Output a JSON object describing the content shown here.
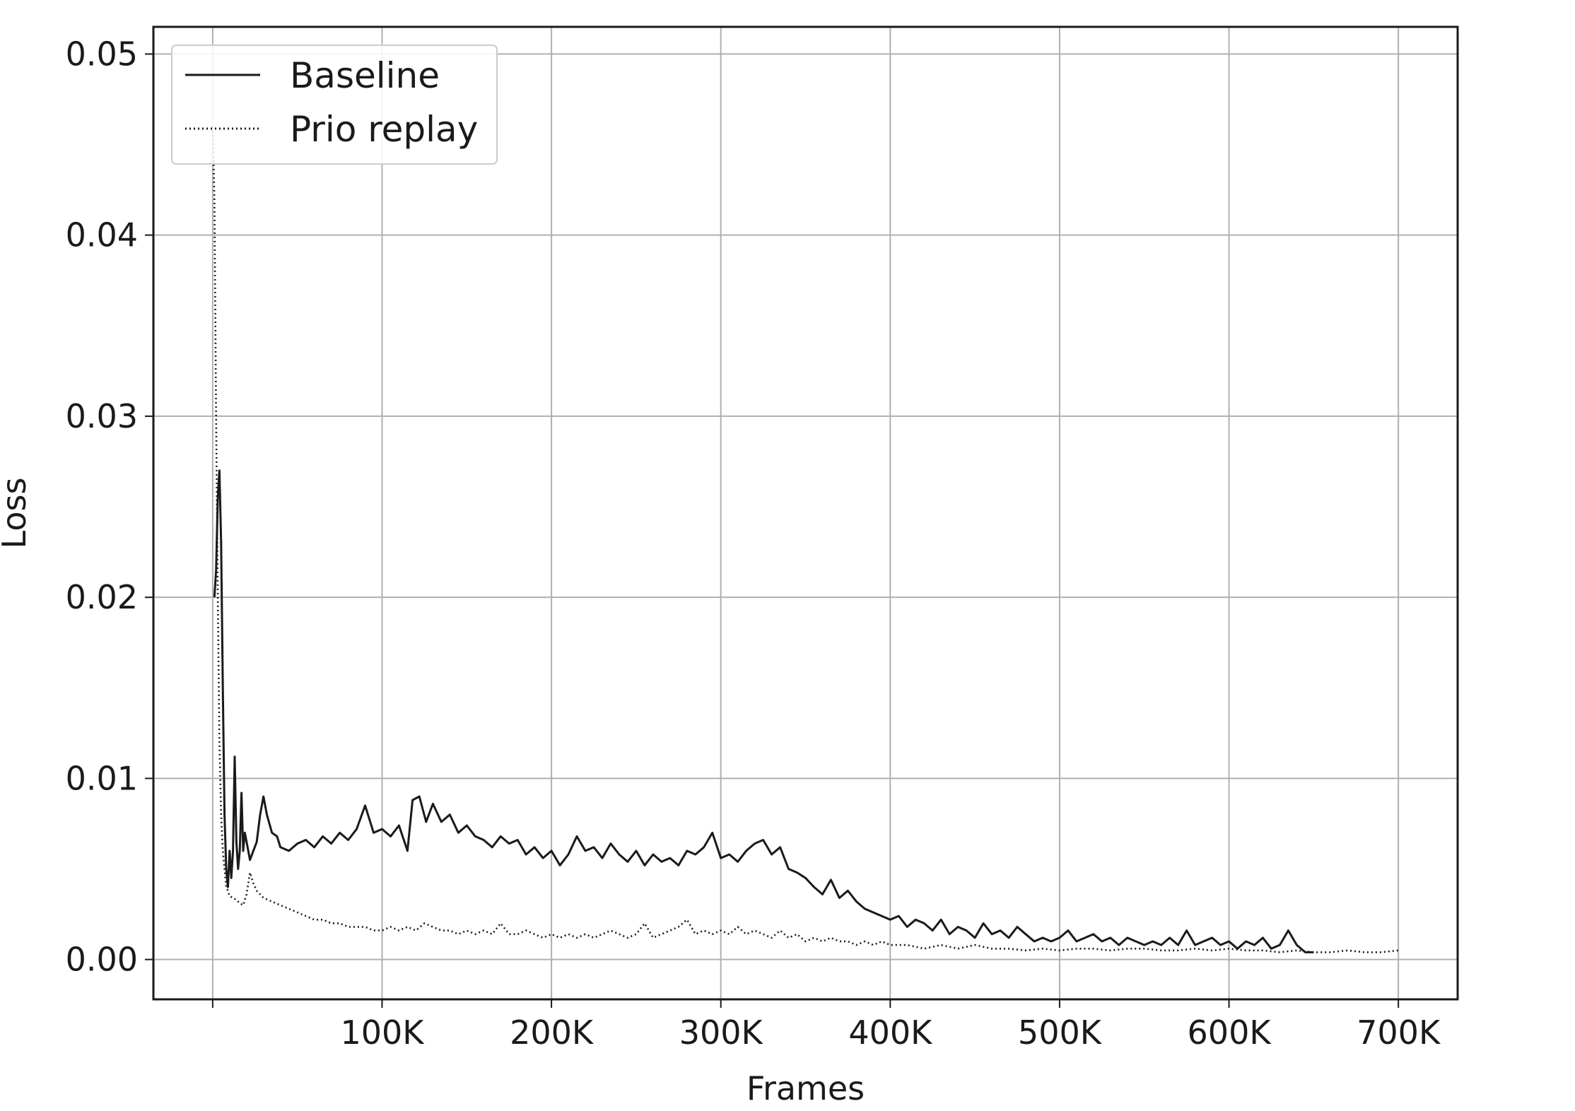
{
  "chart_data": {
    "type": "line",
    "title": "",
    "xlabel": "Frames",
    "ylabel": "Loss",
    "xlim": [
      -35000,
      735000
    ],
    "ylim": [
      -0.0022,
      0.0515
    ],
    "x_ticks": [
      {
        "value": 0,
        "label": ""
      },
      {
        "value": 100000,
        "label": "100K"
      },
      {
        "value": 200000,
        "label": "200K"
      },
      {
        "value": 300000,
        "label": "300K"
      },
      {
        "value": 400000,
        "label": "400K"
      },
      {
        "value": 500000,
        "label": "500K"
      },
      {
        "value": 600000,
        "label": "600K"
      },
      {
        "value": 700000,
        "label": "700K"
      }
    ],
    "y_ticks": [
      {
        "value": 0.0,
        "label": "0.00"
      },
      {
        "value": 0.01,
        "label": "0.01"
      },
      {
        "value": 0.02,
        "label": "0.02"
      },
      {
        "value": 0.03,
        "label": "0.03"
      },
      {
        "value": 0.04,
        "label": "0.04"
      },
      {
        "value": 0.05,
        "label": "0.05"
      }
    ],
    "grid": true,
    "legend": {
      "position": "upper-left"
    },
    "series": [
      {
        "name": "Baseline",
        "style": "solid",
        "color": "#1a1a1a",
        "points": [
          [
            1000,
            0.02
          ],
          [
            2000,
            0.0215
          ],
          [
            3000,
            0.0255
          ],
          [
            4000,
            0.027
          ],
          [
            5000,
            0.023
          ],
          [
            6000,
            0.015
          ],
          [
            7000,
            0.008
          ],
          [
            8000,
            0.005
          ],
          [
            9000,
            0.004
          ],
          [
            10000,
            0.006
          ],
          [
            11000,
            0.0045
          ],
          [
            12000,
            0.006
          ],
          [
            13000,
            0.0112
          ],
          [
            14000,
            0.0065
          ],
          [
            15000,
            0.005
          ],
          [
            16000,
            0.006
          ],
          [
            17000,
            0.0092
          ],
          [
            18000,
            0.006
          ],
          [
            19000,
            0.007
          ],
          [
            20000,
            0.0065
          ],
          [
            22000,
            0.0055
          ],
          [
            24000,
            0.006
          ],
          [
            26000,
            0.0065
          ],
          [
            28000,
            0.008
          ],
          [
            30000,
            0.009
          ],
          [
            32000,
            0.008
          ],
          [
            35000,
            0.007
          ],
          [
            38000,
            0.0068
          ],
          [
            40000,
            0.0062
          ],
          [
            45000,
            0.006
          ],
          [
            50000,
            0.0064
          ],
          [
            55000,
            0.0066
          ],
          [
            60000,
            0.0062
          ],
          [
            65000,
            0.0068
          ],
          [
            70000,
            0.0064
          ],
          [
            75000,
            0.007
          ],
          [
            80000,
            0.0066
          ],
          [
            85000,
            0.0072
          ],
          [
            90000,
            0.0085
          ],
          [
            95000,
            0.007
          ],
          [
            100000,
            0.0072
          ],
          [
            105000,
            0.0068
          ],
          [
            110000,
            0.0074
          ],
          [
            115000,
            0.006
          ],
          [
            118000,
            0.0088
          ],
          [
            122000,
            0.009
          ],
          [
            126000,
            0.0076
          ],
          [
            130000,
            0.0086
          ],
          [
            135000,
            0.0076
          ],
          [
            140000,
            0.008
          ],
          [
            145000,
            0.007
          ],
          [
            150000,
            0.0074
          ],
          [
            155000,
            0.0068
          ],
          [
            160000,
            0.0066
          ],
          [
            165000,
            0.0062
          ],
          [
            170000,
            0.0068
          ],
          [
            175000,
            0.0064
          ],
          [
            180000,
            0.0066
          ],
          [
            185000,
            0.0058
          ],
          [
            190000,
            0.0062
          ],
          [
            195000,
            0.0056
          ],
          [
            200000,
            0.006
          ],
          [
            205000,
            0.0052
          ],
          [
            210000,
            0.0058
          ],
          [
            215000,
            0.0068
          ],
          [
            220000,
            0.006
          ],
          [
            225000,
            0.0062
          ],
          [
            230000,
            0.0056
          ],
          [
            235000,
            0.0064
          ],
          [
            240000,
            0.0058
          ],
          [
            245000,
            0.0054
          ],
          [
            250000,
            0.006
          ],
          [
            255000,
            0.0052
          ],
          [
            260000,
            0.0058
          ],
          [
            265000,
            0.0054
          ],
          [
            270000,
            0.0056
          ],
          [
            275000,
            0.0052
          ],
          [
            280000,
            0.006
          ],
          [
            285000,
            0.0058
          ],
          [
            290000,
            0.0062
          ],
          [
            295000,
            0.007
          ],
          [
            300000,
            0.0056
          ],
          [
            305000,
            0.0058
          ],
          [
            310000,
            0.0054
          ],
          [
            315000,
            0.006
          ],
          [
            320000,
            0.0064
          ],
          [
            325000,
            0.0066
          ],
          [
            330000,
            0.0058
          ],
          [
            335000,
            0.0062
          ],
          [
            340000,
            0.005
          ],
          [
            345000,
            0.0048
          ],
          [
            350000,
            0.0045
          ],
          [
            355000,
            0.004
          ],
          [
            360000,
            0.0036
          ],
          [
            365000,
            0.0044
          ],
          [
            370000,
            0.0034
          ],
          [
            375000,
            0.0038
          ],
          [
            380000,
            0.0032
          ],
          [
            385000,
            0.0028
          ],
          [
            390000,
            0.0026
          ],
          [
            395000,
            0.0024
          ],
          [
            400000,
            0.0022
          ],
          [
            405000,
            0.0024
          ],
          [
            410000,
            0.0018
          ],
          [
            415000,
            0.0022
          ],
          [
            420000,
            0.002
          ],
          [
            425000,
            0.0016
          ],
          [
            430000,
            0.0022
          ],
          [
            435000,
            0.0014
          ],
          [
            440000,
            0.0018
          ],
          [
            445000,
            0.0016
          ],
          [
            450000,
            0.0012
          ],
          [
            455000,
            0.002
          ],
          [
            460000,
            0.0014
          ],
          [
            465000,
            0.0016
          ],
          [
            470000,
            0.0012
          ],
          [
            475000,
            0.0018
          ],
          [
            480000,
            0.0014
          ],
          [
            485000,
            0.001
          ],
          [
            490000,
            0.0012
          ],
          [
            495000,
            0.001
          ],
          [
            500000,
            0.0012
          ],
          [
            505000,
            0.0016
          ],
          [
            510000,
            0.001
          ],
          [
            515000,
            0.0012
          ],
          [
            520000,
            0.0014
          ],
          [
            525000,
            0.001
          ],
          [
            530000,
            0.0012
          ],
          [
            535000,
            0.0008
          ],
          [
            540000,
            0.0012
          ],
          [
            545000,
            0.001
          ],
          [
            550000,
            0.0008
          ],
          [
            555000,
            0.001
          ],
          [
            560000,
            0.0008
          ],
          [
            565000,
            0.0012
          ],
          [
            570000,
            0.0008
          ],
          [
            575000,
            0.0016
          ],
          [
            580000,
            0.0008
          ],
          [
            585000,
            0.001
          ],
          [
            590000,
            0.0012
          ],
          [
            595000,
            0.0008
          ],
          [
            600000,
            0.001
          ],
          [
            605000,
            0.0006
          ],
          [
            610000,
            0.001
          ],
          [
            615000,
            0.0008
          ],
          [
            620000,
            0.0012
          ],
          [
            625000,
            0.0006
          ],
          [
            630000,
            0.0008
          ],
          [
            635000,
            0.0016
          ],
          [
            640000,
            0.0008
          ],
          [
            645000,
            0.0004
          ],
          [
            650000,
            0.0004
          ]
        ]
      },
      {
        "name": "Prio replay",
        "style": "dotted",
        "color": "#1a1a1a",
        "points": [
          [
            0,
            0.046
          ],
          [
            1000,
            0.042
          ],
          [
            2000,
            0.03
          ],
          [
            3000,
            0.02
          ],
          [
            4000,
            0.012
          ],
          [
            5000,
            0.008
          ],
          [
            6000,
            0.006
          ],
          [
            7000,
            0.005
          ],
          [
            8000,
            0.004
          ],
          [
            9000,
            0.0038
          ],
          [
            10000,
            0.0035
          ],
          [
            12000,
            0.0034
          ],
          [
            14000,
            0.0033
          ],
          [
            16000,
            0.0031
          ],
          [
            18000,
            0.003
          ],
          [
            20000,
            0.0036
          ],
          [
            22000,
            0.0048
          ],
          [
            24000,
            0.0042
          ],
          [
            26000,
            0.0038
          ],
          [
            28000,
            0.0036
          ],
          [
            30000,
            0.0034
          ],
          [
            35000,
            0.0032
          ],
          [
            40000,
            0.003
          ],
          [
            45000,
            0.0028
          ],
          [
            50000,
            0.0026
          ],
          [
            55000,
            0.0024
          ],
          [
            60000,
            0.0022
          ],
          [
            65000,
            0.0022
          ],
          [
            70000,
            0.002
          ],
          [
            75000,
            0.002
          ],
          [
            80000,
            0.0018
          ],
          [
            85000,
            0.0018
          ],
          [
            90000,
            0.0018
          ],
          [
            95000,
            0.0016
          ],
          [
            100000,
            0.0016
          ],
          [
            105000,
            0.0018
          ],
          [
            110000,
            0.0016
          ],
          [
            115000,
            0.0018
          ],
          [
            120000,
            0.0016
          ],
          [
            125000,
            0.002
          ],
          [
            130000,
            0.0018
          ],
          [
            135000,
            0.0016
          ],
          [
            140000,
            0.0016
          ],
          [
            145000,
            0.0014
          ],
          [
            150000,
            0.0016
          ],
          [
            155000,
            0.0014
          ],
          [
            160000,
            0.0016
          ],
          [
            165000,
            0.0014
          ],
          [
            170000,
            0.002
          ],
          [
            175000,
            0.0014
          ],
          [
            180000,
            0.0014
          ],
          [
            185000,
            0.0016
          ],
          [
            190000,
            0.0014
          ],
          [
            195000,
            0.0012
          ],
          [
            200000,
            0.0014
          ],
          [
            205000,
            0.0012
          ],
          [
            210000,
            0.0014
          ],
          [
            215000,
            0.0012
          ],
          [
            220000,
            0.0014
          ],
          [
            225000,
            0.0012
          ],
          [
            230000,
            0.0014
          ],
          [
            235000,
            0.0016
          ],
          [
            240000,
            0.0014
          ],
          [
            245000,
            0.0012
          ],
          [
            250000,
            0.0014
          ],
          [
            255000,
            0.002
          ],
          [
            260000,
            0.0012
          ],
          [
            265000,
            0.0014
          ],
          [
            270000,
            0.0016
          ],
          [
            275000,
            0.0018
          ],
          [
            280000,
            0.0022
          ],
          [
            285000,
            0.0014
          ],
          [
            290000,
            0.0016
          ],
          [
            295000,
            0.0014
          ],
          [
            300000,
            0.0016
          ],
          [
            305000,
            0.0014
          ],
          [
            310000,
            0.0018
          ],
          [
            315000,
            0.0014
          ],
          [
            320000,
            0.0016
          ],
          [
            325000,
            0.0014
          ],
          [
            330000,
            0.0012
          ],
          [
            335000,
            0.0016
          ],
          [
            340000,
            0.0012
          ],
          [
            345000,
            0.0014
          ],
          [
            350000,
            0.001
          ],
          [
            355000,
            0.0012
          ],
          [
            360000,
            0.001
          ],
          [
            365000,
            0.0012
          ],
          [
            370000,
            0.001
          ],
          [
            375000,
            0.001
          ],
          [
            380000,
            0.0008
          ],
          [
            385000,
            0.001
          ],
          [
            390000,
            0.0008
          ],
          [
            395000,
            0.001
          ],
          [
            400000,
            0.0008
          ],
          [
            410000,
            0.0008
          ],
          [
            420000,
            0.0006
          ],
          [
            430000,
            0.0008
          ],
          [
            440000,
            0.0006
          ],
          [
            450000,
            0.0008
          ],
          [
            460000,
            0.0006
          ],
          [
            470000,
            0.0006
          ],
          [
            480000,
            0.0005
          ],
          [
            490000,
            0.0006
          ],
          [
            500000,
            0.0005
          ],
          [
            510000,
            0.0006
          ],
          [
            520000,
            0.0006
          ],
          [
            530000,
            0.0005
          ],
          [
            540000,
            0.0006
          ],
          [
            550000,
            0.0006
          ],
          [
            560000,
            0.0005
          ],
          [
            570000,
            0.0005
          ],
          [
            580000,
            0.0006
          ],
          [
            590000,
            0.0005
          ],
          [
            600000,
            0.0006
          ],
          [
            610000,
            0.0005
          ],
          [
            620000,
            0.0005
          ],
          [
            630000,
            0.0004
          ],
          [
            640000,
            0.0005
          ],
          [
            650000,
            0.0004
          ],
          [
            660000,
            0.0004
          ],
          [
            670000,
            0.0005
          ],
          [
            680000,
            0.0004
          ],
          [
            690000,
            0.0004
          ],
          [
            700000,
            0.0005
          ]
        ]
      }
    ]
  }
}
